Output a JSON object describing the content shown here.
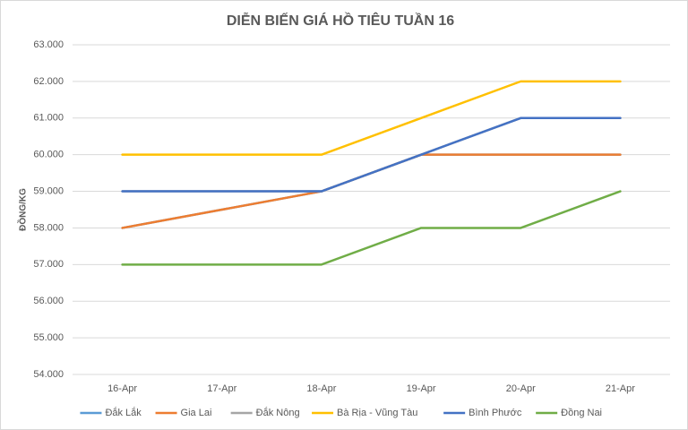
{
  "chart_data": {
    "type": "line",
    "title": "DIỄN BIẾN GIÁ HỒ TIÊU TUẦN 16",
    "y_label": "ĐỒNG/KG",
    "categories": [
      "16-Apr",
      "17-Apr",
      "18-Apr",
      "19-Apr",
      "20-Apr",
      "21-Apr"
    ],
    "series": [
      {
        "name": "Đắk Lắk",
        "color": "#5b9bd5",
        "values": [
          58000,
          58500,
          59000,
          60000,
          60000,
          60000
        ]
      },
      {
        "name": "Gia Lai",
        "color": "#ed7d31",
        "values": [
          58000,
          58500,
          59000,
          60000,
          60000,
          60000
        ]
      },
      {
        "name": "Đắk Nông",
        "color": "#a5a5a5",
        "values": [
          59000,
          59000,
          59000,
          60000,
          61000,
          61000
        ]
      },
      {
        "name": "Bà Rịa - Vũng Tàu",
        "color": "#ffc000",
        "values": [
          60000,
          60000,
          60000,
          61000,
          62000,
          62000
        ]
      },
      {
        "name": "Bình Phước",
        "color": "#4472c4",
        "values": [
          59000,
          59000,
          59000,
          60000,
          61000,
          61000
        ]
      },
      {
        "name": "Đồng Nai",
        "color": "#70ad47",
        "values": [
          57000,
          57000,
          57000,
          58000,
          58000,
          59000
        ]
      }
    ],
    "ylim": [
      54000,
      63000
    ],
    "yticks": [
      {
        "value": 54000,
        "label": "54.000"
      },
      {
        "value": 55000,
        "label": "55.000"
      },
      {
        "value": 56000,
        "label": "56.000"
      },
      {
        "value": 57000,
        "label": "57.000"
      },
      {
        "value": 58000,
        "label": "58.000"
      },
      {
        "value": 59000,
        "label": "59.000"
      },
      {
        "value": 60000,
        "label": "60.000"
      },
      {
        "value": 61000,
        "label": "61.000"
      },
      {
        "value": 62000,
        "label": "62.000"
      },
      {
        "value": 63000,
        "label": "63.000"
      }
    ],
    "grid": true,
    "legend": "bottom"
  }
}
